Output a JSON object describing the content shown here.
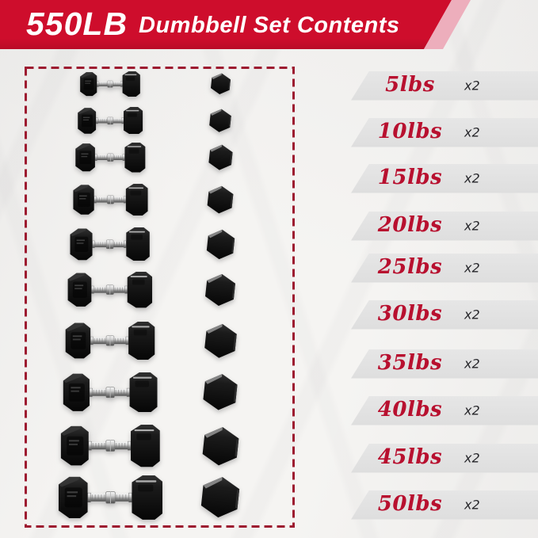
{
  "header": {
    "total_weight": "550LB",
    "title": "Dumbbell Set Contents"
  },
  "contents": {
    "rows": [
      {
        "weight": "5lbs",
        "qty": "x2"
      },
      {
        "weight": "10lbs",
        "qty": "x2"
      },
      {
        "weight": "15lbs",
        "qty": "x2"
      },
      {
        "weight": "20lbs",
        "qty": "x2"
      },
      {
        "weight": "25lbs",
        "qty": "x2"
      },
      {
        "weight": "30lbs",
        "qty": "x2"
      },
      {
        "weight": "35lbs",
        "qty": "x2"
      },
      {
        "weight": "40lbs",
        "qty": "x2"
      },
      {
        "weight": "45lbs",
        "qty": "x2"
      },
      {
        "weight": "50lbs",
        "qty": "x2"
      }
    ]
  },
  "icons": {
    "dumbbell_side": "dumbbell-side-icon",
    "hex_end": "hexagon-end-icon"
  },
  "colors": {
    "header_red": "#ce0d2c",
    "header_accent_pink": "#edaebc",
    "header_text": "#ffffff",
    "weight_text_red": "#b8102f",
    "qty_text": "#26262a",
    "row_banner_gray": "#dedede",
    "dashed_border_red": "#9d1b30",
    "background": "#f5f4f2",
    "dumbbell_black": "#131313",
    "handle_chrome": "#c9c9c9"
  }
}
